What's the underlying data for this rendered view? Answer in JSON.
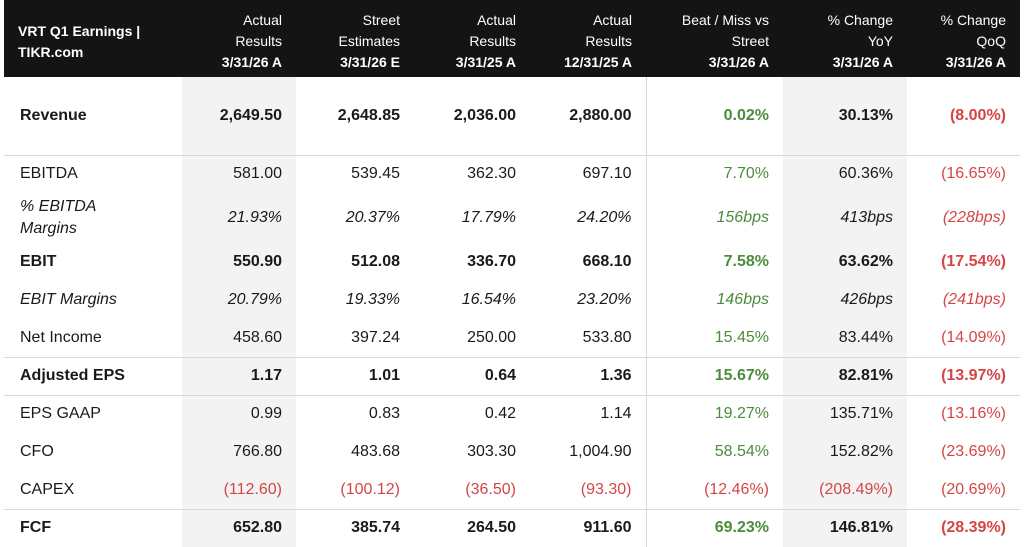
{
  "columns": [
    {
      "l1": "VRT Q1 Earnings |",
      "l2": "TIKR.com",
      "date": ""
    },
    {
      "l1": "Actual",
      "l2": "Results",
      "date": "3/31/26 A"
    },
    {
      "l1": "Street",
      "l2": "Estimates",
      "date": "3/31/26 E"
    },
    {
      "l1": "Actual",
      "l2": "Results",
      "date": "3/31/25 A"
    },
    {
      "l1": "Actual",
      "l2": "Results",
      "date": "12/31/25 A"
    },
    {
      "l1": "Beat / Miss vs",
      "l2": "Street",
      "date": "3/31/26 A"
    },
    {
      "l1": "% Change",
      "l2": "YoY",
      "date": "3/31/26 A"
    },
    {
      "l1": "% Change",
      "l2": "QoQ",
      "date": "3/31/26 A"
    }
  ],
  "rows": [
    {
      "label": "Revenue",
      "values": [
        "2,649.50",
        "2,648.85",
        "2,036.00",
        "2,880.00",
        "0.02%",
        "30.13%",
        "(8.00%)"
      ]
    },
    {
      "label": "EBITDA",
      "values": [
        "581.00",
        "539.45",
        "362.30",
        "697.10",
        "7.70%",
        "60.36%",
        "(16.65%)"
      ]
    },
    {
      "label": "% EBITDA Margins",
      "values": [
        "21.93%",
        "20.37%",
        "17.79%",
        "24.20%",
        "156bps",
        "413bps",
        "(228bps)"
      ]
    },
    {
      "label": "EBIT",
      "values": [
        "550.90",
        "512.08",
        "336.70",
        "668.10",
        "7.58%",
        "63.62%",
        "(17.54%)"
      ]
    },
    {
      "label": "EBIT Margins",
      "values": [
        "20.79%",
        "19.33%",
        "16.54%",
        "23.20%",
        "146bps",
        "426bps",
        "(241bps)"
      ]
    },
    {
      "label": "Net Income",
      "values": [
        "458.60",
        "397.24",
        "250.00",
        "533.80",
        "15.45%",
        "83.44%",
        "(14.09%)"
      ]
    },
    {
      "label": "Adjusted EPS",
      "values": [
        "1.17",
        "1.01",
        "0.64",
        "1.36",
        "15.67%",
        "82.81%",
        "(13.97%)"
      ]
    },
    {
      "label": "EPS GAAP",
      "values": [
        "0.99",
        "0.83",
        "0.42",
        "1.14",
        "19.27%",
        "135.71%",
        "(13.16%)"
      ]
    },
    {
      "label": "CFO",
      "values": [
        "766.80",
        "483.68",
        "303.30",
        "1,004.90",
        "58.54%",
        "152.82%",
        "(23.69%)"
      ]
    },
    {
      "label": "CAPEX",
      "values": [
        "(112.60)",
        "(100.12)",
        "(36.50)",
        "(93.30)",
        "(12.46%)",
        "(208.49%)",
        "(20.69%)"
      ]
    },
    {
      "label": "FCF",
      "values": [
        "652.80",
        "385.74",
        "264.50",
        "911.60",
        "69.23%",
        "146.81%",
        "(28.39%)"
      ]
    }
  ],
  "colors": {
    "positive": "#4c8c3c",
    "negative": "#d64545",
    "header_bg": "#141414"
  }
}
